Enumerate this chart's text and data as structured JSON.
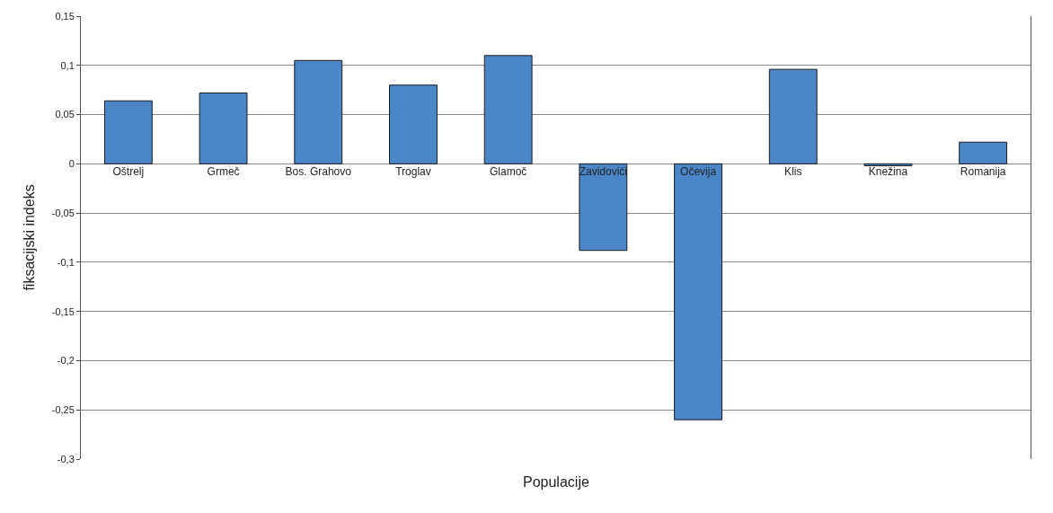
{
  "chart_data": {
    "type": "bar",
    "xlabel": "Populacije",
    "ylabel": "fiksacijski indeks",
    "categories": [
      "Oštrelj",
      "Grmeč",
      "Bos. Grahovo",
      "Troglav",
      "Glamoč",
      "Zavidovići",
      "Očevija",
      "Klis",
      "Knežina",
      "Romanija"
    ],
    "values": [
      0.064,
      0.072,
      0.105,
      0.08,
      0.11,
      -0.088,
      -0.26,
      0.096,
      -0.002,
      0.022
    ],
    "color": "#4a86c8",
    "ylim": [
      -0.3,
      0.15
    ],
    "yticks": [
      {
        "value": 0.15,
        "label": "0,15"
      },
      {
        "value": 0.1,
        "label": "0,1"
      },
      {
        "value": 0.05,
        "label": "0,05"
      },
      {
        "value": 0,
        "label": "0"
      },
      {
        "value": -0.05,
        "label": "-0,05"
      },
      {
        "value": -0.1,
        "label": "-0,1"
      },
      {
        "value": -0.15,
        "label": "-0,15"
      },
      {
        "value": -0.2,
        "label": "-0,2"
      },
      {
        "value": -0.25,
        "label": "-0,25"
      },
      {
        "value": -0.3,
        "label": "-0,3"
      }
    ],
    "grid": "y"
  }
}
